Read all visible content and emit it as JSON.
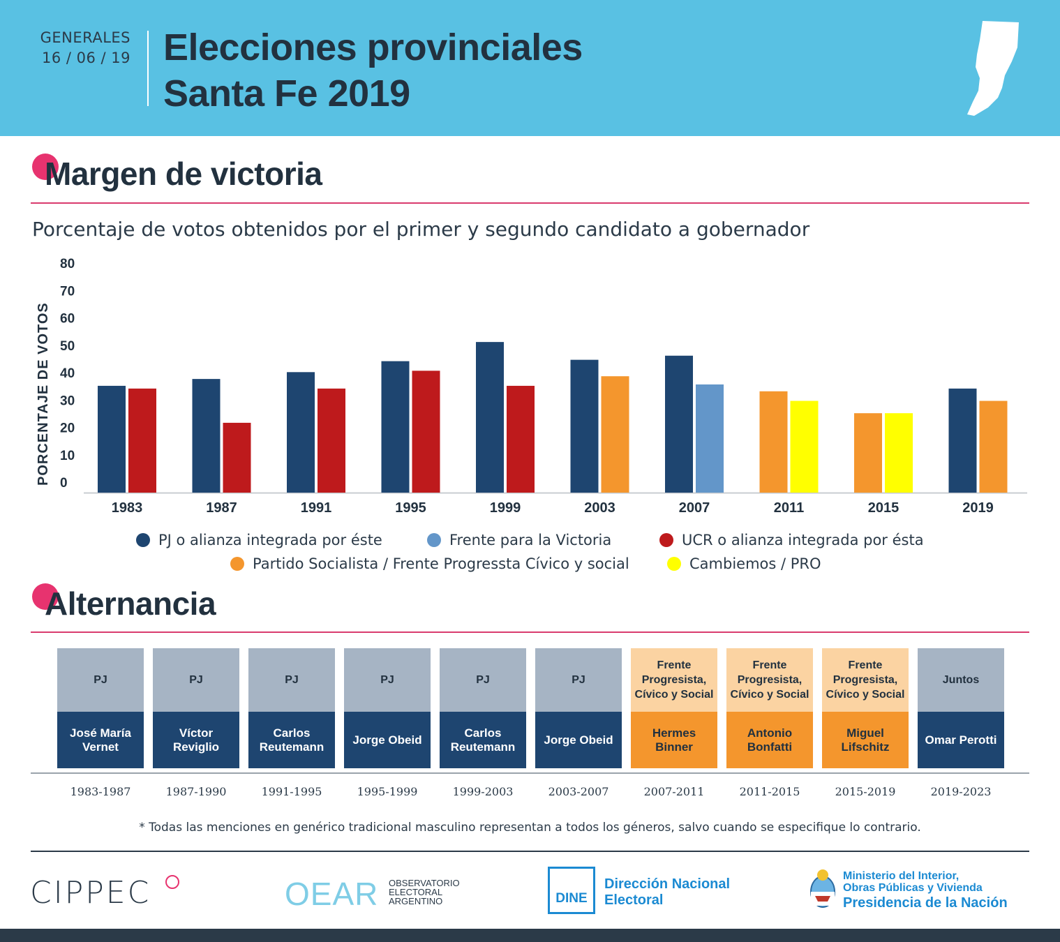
{
  "header": {
    "election_type": "GENERALES",
    "date": "16 / 06 / 19",
    "title_line1": "Elecciones provinciales",
    "title_line2": "Santa Fe 2019",
    "bg_color": "#59c1e3"
  },
  "section1": {
    "title_first": "M",
    "title_rest": "argen de victoria",
    "subtitle": "Porcentaje de votos obtenidos por el primer y segundo candidato a gobernador"
  },
  "chart_data": {
    "type": "bar",
    "title": "Porcentaje de votos obtenidos por el primer y segundo candidato a gobernador",
    "xlabel": "",
    "ylabel": "PORCENTAJE DE VOTOS",
    "ylim": [
      0,
      80
    ],
    "yticks": [
      "80",
      "70",
      "60",
      "50",
      "40",
      "30",
      "20",
      "10",
      "0"
    ],
    "categories": [
      "1983",
      "1987",
      "1991",
      "1995",
      "1999",
      "2003",
      "2007",
      "2011",
      "2015",
      "2019"
    ],
    "series": [
      {
        "name": "Primer candidato",
        "values": [
          39,
          41.5,
          44,
          48,
          55,
          48.5,
          50,
          37,
          29,
          38
        ],
        "parties": [
          "pj",
          "pj",
          "pj",
          "pj",
          "pj",
          "pj",
          "pj",
          "ps",
          "ps",
          "pj"
        ]
      },
      {
        "name": "Segundo candidato",
        "values": [
          38,
          25.5,
          38,
          44.5,
          39,
          42.5,
          39.5,
          33.5,
          29,
          33.5
        ],
        "parties": [
          "ucr",
          "ucr",
          "ucr",
          "ucr",
          "ucr",
          "ps",
          "fpv",
          "pro",
          "pro",
          "ps"
        ]
      }
    ],
    "party_colors": {
      "pj": "#1e4570",
      "fpv": "#6396c9",
      "ucr": "#be1a1c",
      "ps": "#f4962d",
      "pro": "#ffff00"
    },
    "legend": [
      {
        "key": "pj",
        "label": "PJ o alianza integrada por éste"
      },
      {
        "key": "fpv",
        "label": "Frente para la Victoria"
      },
      {
        "key": "ucr",
        "label": "UCR o alianza integrada por ésta"
      },
      {
        "key": "ps",
        "label": "Partido Socialista / Frente Progressta Cívico y social"
      },
      {
        "key": "pro",
        "label": "Cambiemos / PRO"
      }
    ]
  },
  "section2": {
    "title_first": "A",
    "title_rest": "lternancia"
  },
  "alternancia": [
    {
      "party": "PJ",
      "governor": "José María Vernet",
      "period": "1983-1987"
    },
    {
      "party": "PJ",
      "governor": "Víctor Reviglio",
      "period": "1987-1990"
    },
    {
      "party": "PJ",
      "governor": "Carlos Reutemann",
      "period": "1991-1995"
    },
    {
      "party": "PJ",
      "governor": "Jorge Obeid",
      "period": "1995-1999"
    },
    {
      "party": "PJ",
      "governor": "Carlos Reutemann",
      "period": "1999-2003"
    },
    {
      "party": "PJ",
      "governor": "Jorge Obeid",
      "period": "2003-2007"
    },
    {
      "party": "Frente Progresista, Cívico y Social",
      "governor": "Hermes Binner",
      "period": "2007-2011"
    },
    {
      "party": "Frente Progresista, Cívico y Social",
      "governor": "Antonio Bonfatti",
      "period": "2011-2015"
    },
    {
      "party": "Frente Progresista, Cívico y Social",
      "governor": "Miguel Lifschitz",
      "period": "2015-2019"
    },
    {
      "party": "Juntos",
      "governor": "Omar Perotti",
      "period": "2019-2023"
    }
  ],
  "footnote": "* Todas las menciones en genérico tradicional masculino representan a todos los géneros, salvo cuando se especifique lo contrario.",
  "logos": {
    "cippec": "CIPPEC",
    "oear_mark": "OEAR",
    "oear_line1": "OBSERVATORIO",
    "oear_line2": "ELECTORAL",
    "oear_line3": "ARGENTINO",
    "dine_mark": "DINE",
    "dine_line1": "Dirección Nacional",
    "dine_line2": "Electoral",
    "min_line1": "Ministerio del Interior,",
    "min_line2": "Obras Públicas y Vivienda",
    "min_line3": "Presidencia de la Nación"
  }
}
